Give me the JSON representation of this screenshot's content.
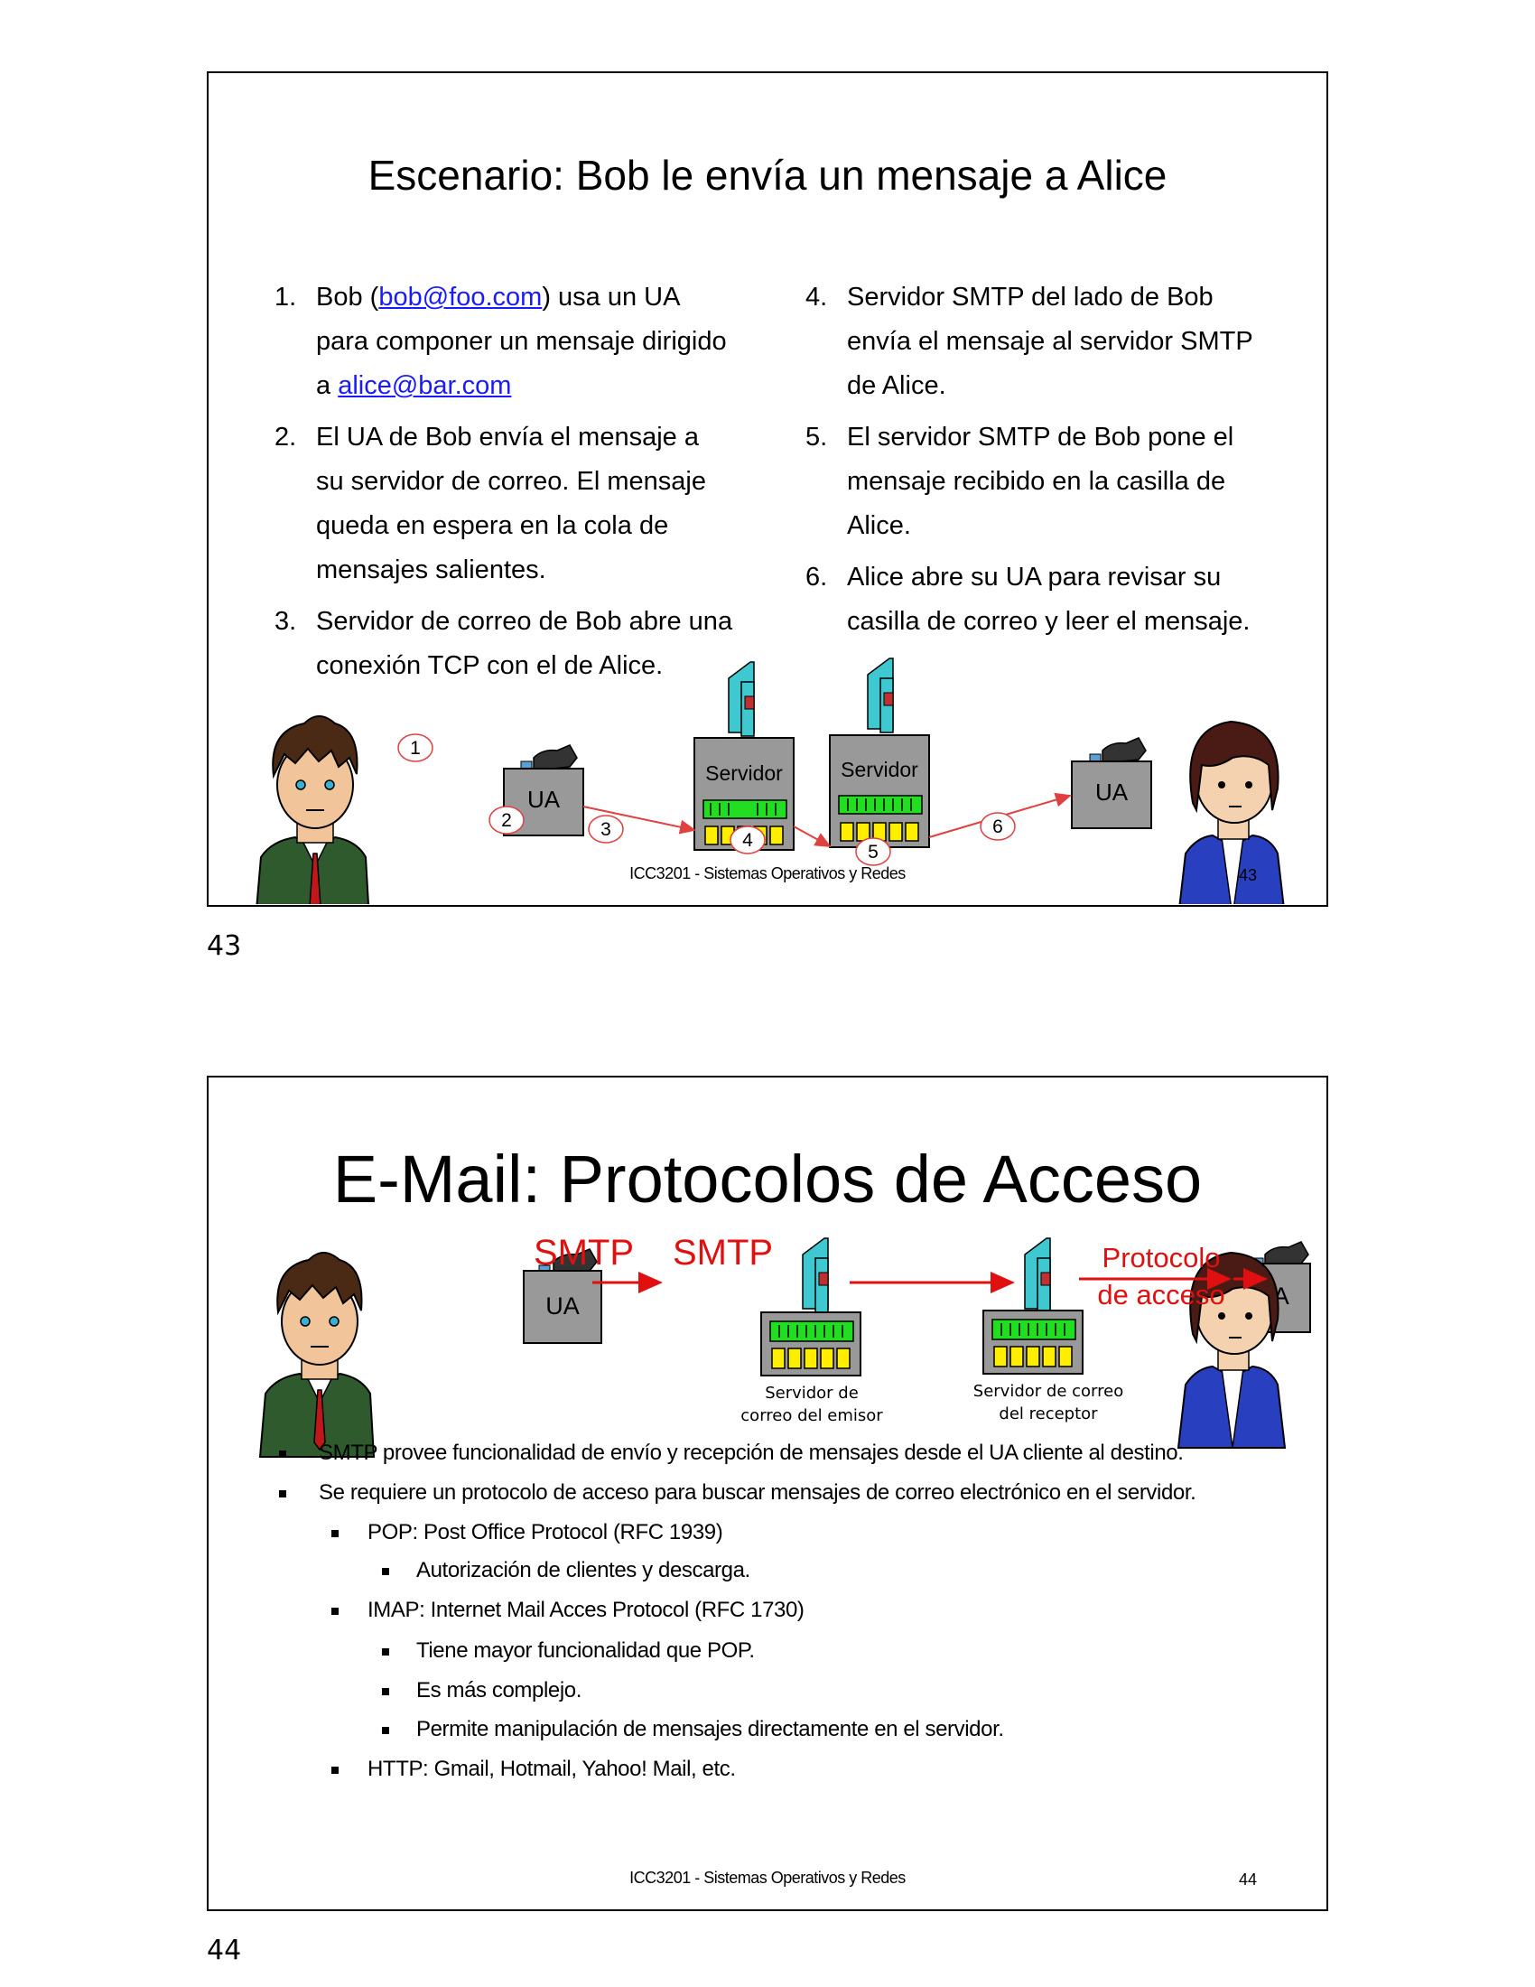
{
  "slide43": {
    "title": "Escenario: Bob le envía un mensaje a Alice",
    "steps_left": [
      {
        "num": "1.",
        "parts": [
          "Bob (",
          "bob@foo.com",
          ") usa un UA"
        ],
        "line2": "para componer un mensaje dirigido",
        "line3a": "a ",
        "line3link": "alice@bar.com"
      },
      {
        "num": "2.",
        "lines": [
          "El UA de Bob envía el mensaje a",
          "su servidor de correo. El mensaje",
          "queda en espera en la cola de",
          "mensajes salientes."
        ]
      },
      {
        "num": "3.",
        "lines": [
          "Servidor de correo de Bob abre una",
          "conexión TCP con el de Alice."
        ]
      }
    ],
    "steps_right": [
      {
        "num": "4.",
        "lines": [
          "Servidor SMTP del lado de Bob",
          "envía el mensaje al servidor SMTP",
          "de Alice."
        ]
      },
      {
        "num": "5.",
        "lines": [
          "El servidor SMTP de Bob pone el",
          "mensaje recibido en la casilla de",
          "Alice."
        ]
      },
      {
        "num": "6.",
        "lines": [
          "Alice abre su UA para revisar su",
          "casilla de correo y leer el mensaje."
        ]
      }
    ],
    "diagram": {
      "ua_left": "UA",
      "ua_right": "UA",
      "server_left": "Servidor",
      "server_right": "Servidor",
      "markers": [
        "1",
        "2",
        "3",
        "4",
        "5",
        "6"
      ]
    },
    "footer": "ICC3201 - Sistemas Operativos y Redes",
    "footer_num": "43",
    "page_num": "43"
  },
  "slide44": {
    "title": "E-Mail: Protocolos de Acceso",
    "diagram": {
      "ua_left": "UA",
      "ua_right": "UA",
      "smtp1": "SMTP",
      "smtp2": "SMTP",
      "access1": "Protocolo",
      "access2": "de acceso",
      "sender1": "Servidor de",
      "sender2": "correo del emisor",
      "receiver1": "Servidor de correo",
      "receiver2": "del receptor"
    },
    "bullets": [
      {
        "level": 1,
        "text": "SMTP provee funcionalidad de envío y recepción de mensajes desde el UA cliente al destino."
      },
      {
        "level": 1,
        "text": "Se requiere un protocolo de acceso para buscar mensajes de correo electrónico en el servidor."
      },
      {
        "level": 2,
        "text": "POP: Post Office Protocol (RFC 1939)"
      },
      {
        "level": 3,
        "text": "Autorización de clientes y descarga."
      },
      {
        "level": 2,
        "text": "IMAP: Internet Mail Acces Protocol (RFC 1730)"
      },
      {
        "level": 3,
        "text": "Tiene mayor funcionalidad que POP."
      },
      {
        "level": 3,
        "text": "Es más complejo."
      },
      {
        "level": 3,
        "text": "Permite manipulación de mensajes directamente en el servidor."
      },
      {
        "level": 2,
        "text": "HTTP: Gmail, Hotmail, Yahoo! Mail, etc."
      }
    ],
    "footer": "ICC3201 - Sistemas Operativos y Redes",
    "footer_num": "44",
    "page_num": "44"
  },
  "colors": {
    "arrow_red": "#e01010",
    "server_cyan": "#40c8d0",
    "queue_green": "#22dd22",
    "mailbox_yellow": "#ffee00",
    "link_blue": "#1a1aff"
  }
}
